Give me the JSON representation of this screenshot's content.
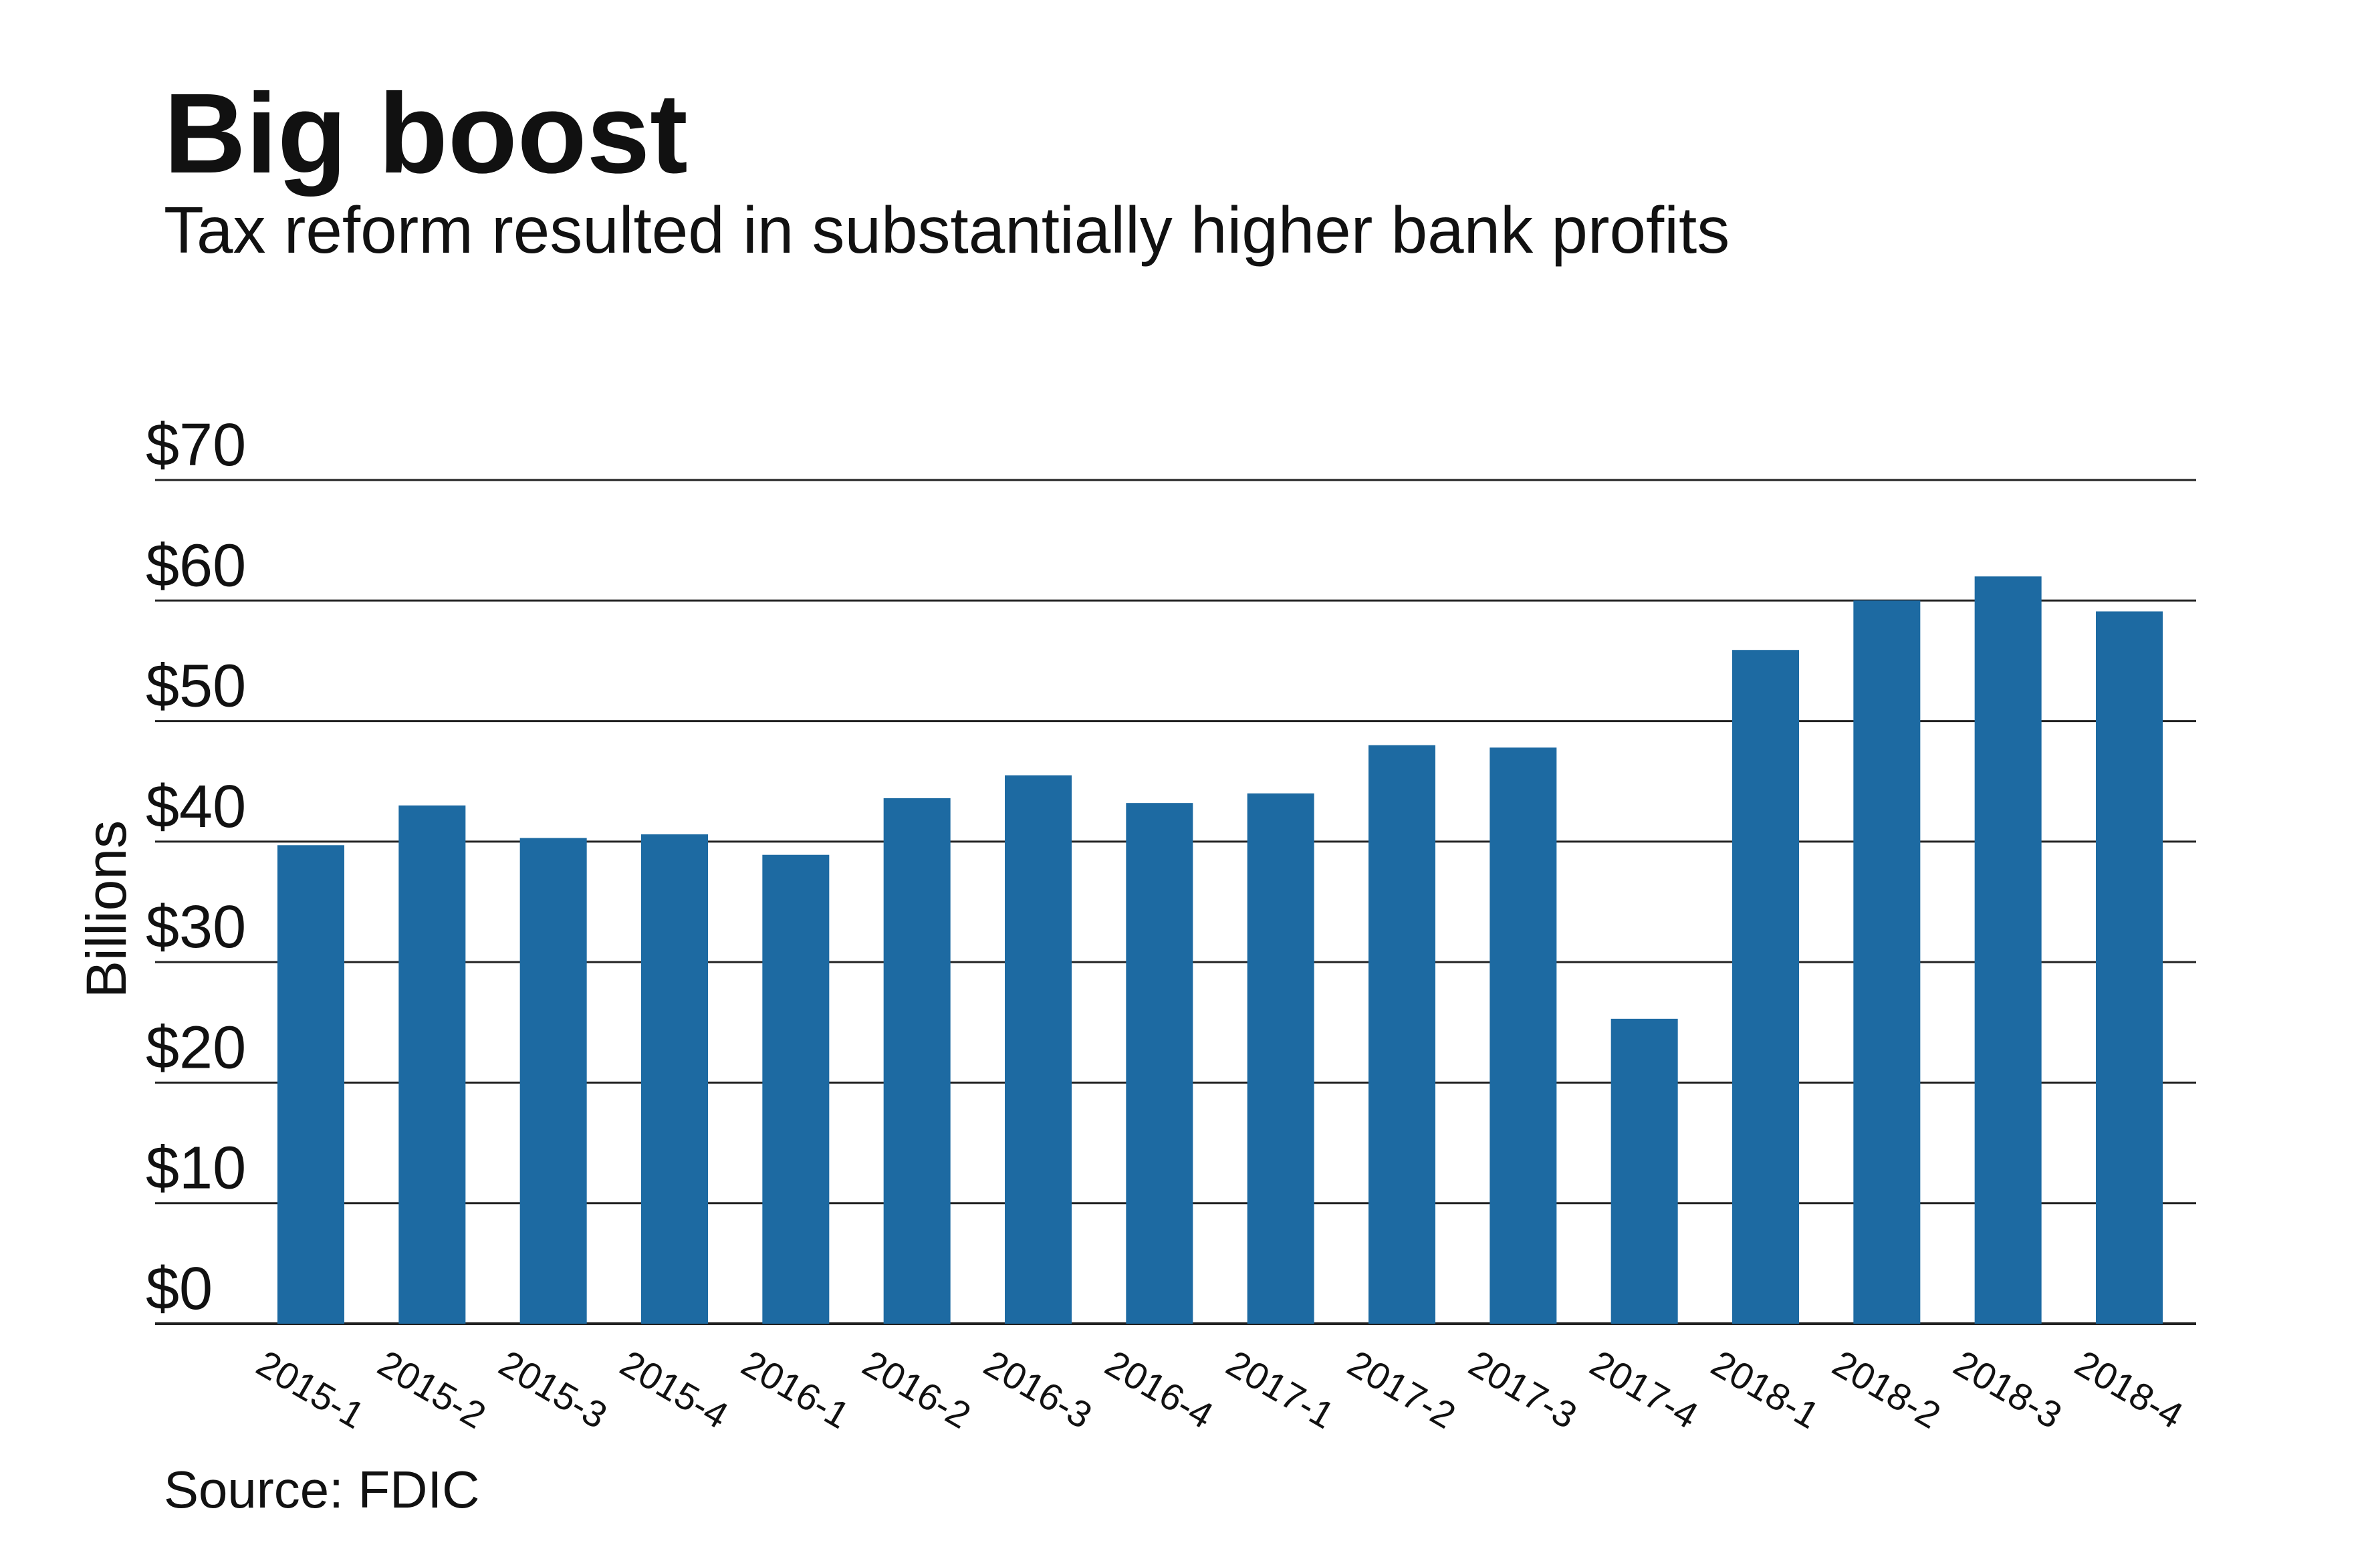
{
  "header": {
    "title": "Big boost",
    "subtitle": "Tax reform resulted in substantially higher bank profits"
  },
  "footer": {
    "source": "Source: FDIC"
  },
  "colors": {
    "bar": "#1d6aa2",
    "text": "#111111",
    "grid": "#222222"
  },
  "chart_data": {
    "type": "bar",
    "title": "Big boost",
    "subtitle": "Tax reform resulted in substantially higher bank profits",
    "xlabel": "",
    "ylabel": "Billions",
    "ylim": [
      0,
      70
    ],
    "yticks": [
      0,
      10,
      20,
      30,
      40,
      50,
      60,
      70
    ],
    "ytick_labels": [
      "$0",
      "$10",
      "$20",
      "$30",
      "$40",
      "$50",
      "$60",
      "$70"
    ],
    "grid": true,
    "categories": [
      "2015-1",
      "2015-2",
      "2015-3",
      "2015-4",
      "2016-1",
      "2016-2",
      "2016-3",
      "2016-4",
      "2017-1",
      "2017-2",
      "2017-3",
      "2017-4",
      "2018-1",
      "2018-2",
      "2018-3",
      "2018-4"
    ],
    "values": [
      39.7,
      43.0,
      40.3,
      40.6,
      38.9,
      43.6,
      45.5,
      43.2,
      44.0,
      48.0,
      47.8,
      25.3,
      55.9,
      60.0,
      62.0,
      59.1
    ],
    "source": "Source: FDIC"
  }
}
